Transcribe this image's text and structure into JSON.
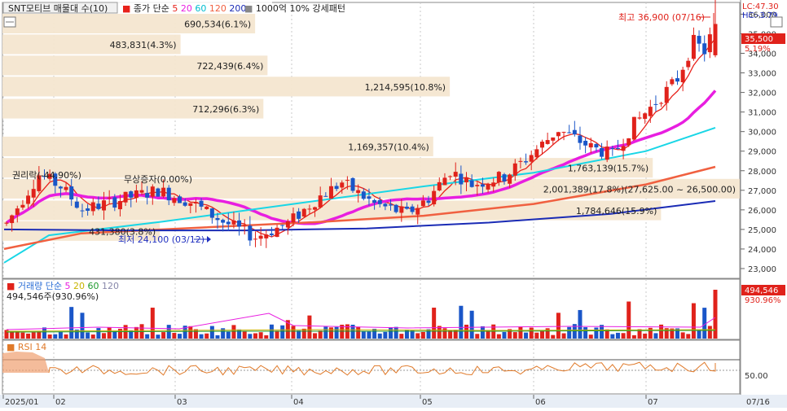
{
  "header": {
    "stock_name": "SNT모티브 매물대 수(10)",
    "ma_label": "종가 단순",
    "ma_periods": [
      "5",
      "20",
      "60",
      "120",
      "200"
    ],
    "ma_colors": [
      "#e8221b",
      "#e81ee0",
      "#00d2e6",
      "#f06040",
      "#1a2bb5"
    ],
    "extra": "1000억 10% 강세패턴",
    "lc": "LC:47.30",
    "hc": "HC:-3.79"
  },
  "price_axis": {
    "ticks": [
      "36,000",
      "35,000",
      "34,000",
      "33,000",
      "32,000",
      "31,000",
      "30,000",
      "29,000",
      "28,000",
      "27,000",
      "26,000",
      "25,000",
      "24,000",
      "23,000"
    ],
    "current_price": "35,500",
    "current_change": "5.19%"
  },
  "volume_axis": {
    "current_value": "494,546",
    "current_pct": "930.96%"
  },
  "rsi_axis": {
    "tick": "50.00"
  },
  "date_axis": {
    "labels": [
      "2025/01",
      "02",
      "03",
      "04",
      "05",
      "06",
      "07"
    ],
    "right_label": "07/16"
  },
  "volume_legend": {
    "name": "거래량",
    "ma_label": "단순",
    "periods": [
      "5",
      "20",
      "60",
      "120"
    ],
    "summary": "494,546주(930.96%)"
  },
  "rsi_legend": {
    "name": "RSI 14"
  },
  "annotations": {
    "high": "최고 36,900 (07/16)",
    "low": "최저 24,100 (03/12)",
    "rights": "권리락(-44.90%)",
    "free_issue": "무상증자(0.00%)"
  },
  "chart_data": {
    "type": "candlestick",
    "price_range": [
      22500,
      36600
    ],
    "current_price": 35500,
    "period_high": 36900,
    "period_low": 24100,
    "volume_profile": [
      {
        "label": "2,001,389(17.8%)(27,625.00 ~ 26,500.00)",
        "price": 27060,
        "pct": 17.8
      },
      {
        "label": "1,784,646(15.9%)",
        "price": 25950,
        "pct": 15.9
      },
      {
        "label": "1,763,139(15.7%)",
        "price": 28130,
        "pct": 15.7
      },
      {
        "label": "1,214,595(10.8%)",
        "price": 32280,
        "pct": 10.8
      },
      {
        "label": "1,169,357(10.4%)",
        "price": 29220,
        "pct": 10.4
      },
      {
        "label": "722,439(6.4%)",
        "price": 33360,
        "pct": 6.4
      },
      {
        "label": "712,296(6.3%)",
        "price": 31150,
        "pct": 6.3
      },
      {
        "label": "690,534(6.1%)",
        "price": 35500,
        "pct": 6.1
      },
      {
        "label": "483,831(4.3%)",
        "price": 34440,
        "pct": 4.3
      },
      {
        "label": "431,380(3.8%)",
        "price": 24900,
        "pct": 3.8
      }
    ]
  }
}
